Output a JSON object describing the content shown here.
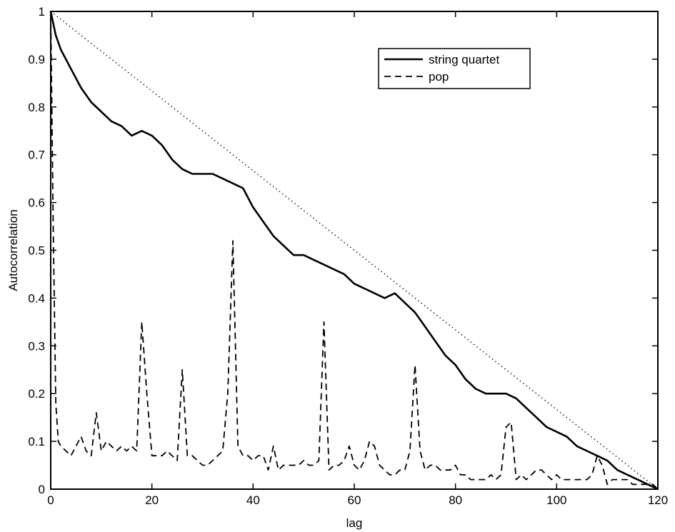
{
  "chart_data": {
    "type": "line",
    "title": "",
    "xlabel": "lag",
    "ylabel": "Autocorrelation",
    "xlim": [
      0,
      120
    ],
    "ylim": [
      0,
      1
    ],
    "xticks": [
      0,
      20,
      40,
      60,
      80,
      100,
      120
    ],
    "yticks": [
      0,
      0.1,
      0.2,
      0.3,
      0.4,
      0.5,
      0.6,
      0.7,
      0.8,
      0.9,
      1
    ],
    "ytick_labels": [
      "0",
      "0.1",
      "0.2",
      "0.3",
      "0.4",
      "0.5",
      "0.6",
      "0.7",
      "0.8",
      "0.9",
      "1"
    ],
    "grid": false,
    "legend_position": "top-right",
    "series": [
      {
        "name": "string quartet",
        "style": "solid",
        "color": "#000000",
        "x": [
          0,
          1,
          2,
          4,
          6,
          8,
          10,
          12,
          14,
          16,
          18,
          20,
          22,
          24,
          26,
          28,
          30,
          32,
          34,
          36,
          38,
          40,
          42,
          44,
          46,
          48,
          50,
          52,
          54,
          56,
          58,
          60,
          62,
          64,
          66,
          68,
          70,
          72,
          74,
          76,
          78,
          80,
          82,
          84,
          86,
          88,
          90,
          92,
          94,
          96,
          98,
          100,
          102,
          104,
          106,
          108,
          110,
          112,
          114,
          116,
          118,
          120
        ],
        "y": [
          1.0,
          0.95,
          0.92,
          0.88,
          0.84,
          0.81,
          0.79,
          0.77,
          0.76,
          0.74,
          0.75,
          0.74,
          0.72,
          0.69,
          0.67,
          0.66,
          0.66,
          0.66,
          0.65,
          0.64,
          0.63,
          0.59,
          0.56,
          0.53,
          0.51,
          0.49,
          0.49,
          0.48,
          0.47,
          0.46,
          0.45,
          0.43,
          0.42,
          0.41,
          0.4,
          0.41,
          0.39,
          0.37,
          0.34,
          0.31,
          0.28,
          0.26,
          0.23,
          0.21,
          0.2,
          0.2,
          0.2,
          0.19,
          0.17,
          0.15,
          0.13,
          0.12,
          0.11,
          0.09,
          0.08,
          0.07,
          0.06,
          0.04,
          0.03,
          0.02,
          0.01,
          0.0
        ]
      },
      {
        "name": "pop",
        "style": "dashed",
        "color": "#000000",
        "x": [
          0,
          0.5,
          1,
          1.5,
          2,
          3,
          4,
          5,
          6,
          7,
          8,
          9,
          10,
          11,
          12,
          13,
          14,
          15,
          16,
          17,
          18,
          19,
          20,
          21,
          22,
          23,
          24,
          25,
          26,
          27,
          28,
          29,
          30,
          31,
          32,
          33,
          34,
          35,
          36,
          37,
          38,
          39,
          40,
          41,
          42,
          43,
          44,
          45,
          46,
          47,
          48,
          49,
          50,
          51,
          52,
          53,
          54,
          55,
          56,
          57,
          58,
          59,
          60,
          61,
          62,
          63,
          64,
          65,
          66,
          67,
          68,
          69,
          70,
          71,
          72,
          73,
          74,
          75,
          76,
          77,
          78,
          79,
          80,
          81,
          82,
          83,
          84,
          85,
          86,
          87,
          88,
          89,
          90,
          91,
          92,
          93,
          94,
          95,
          96,
          97,
          98,
          99,
          100,
          101,
          102,
          103,
          104,
          105,
          106,
          107,
          108,
          109,
          110,
          111,
          112,
          113,
          114,
          115,
          116,
          117,
          118,
          119,
          120
        ],
        "y": [
          1.0,
          0.55,
          0.18,
          0.1,
          0.09,
          0.08,
          0.07,
          0.09,
          0.11,
          0.08,
          0.07,
          0.16,
          0.08,
          0.1,
          0.09,
          0.08,
          0.09,
          0.08,
          0.09,
          0.08,
          0.35,
          0.2,
          0.07,
          0.07,
          0.07,
          0.08,
          0.07,
          0.06,
          0.25,
          0.07,
          0.07,
          0.06,
          0.05,
          0.05,
          0.06,
          0.07,
          0.08,
          0.2,
          0.52,
          0.09,
          0.07,
          0.07,
          0.06,
          0.07,
          0.07,
          0.04,
          0.09,
          0.04,
          0.05,
          0.05,
          0.05,
          0.05,
          0.06,
          0.05,
          0.05,
          0.06,
          0.35,
          0.04,
          0.05,
          0.05,
          0.06,
          0.09,
          0.05,
          0.04,
          0.06,
          0.1,
          0.09,
          0.05,
          0.04,
          0.03,
          0.03,
          0.04,
          0.04,
          0.08,
          0.26,
          0.08,
          0.04,
          0.05,
          0.05,
          0.04,
          0.04,
          0.04,
          0.05,
          0.03,
          0.03,
          0.02,
          0.02,
          0.02,
          0.02,
          0.03,
          0.02,
          0.03,
          0.13,
          0.14,
          0.02,
          0.03,
          0.02,
          0.03,
          0.04,
          0.04,
          0.03,
          0.02,
          0.03,
          0.02,
          0.02,
          0.02,
          0.02,
          0.02,
          0.02,
          0.03,
          0.07,
          0.05,
          0.01,
          0.02,
          0.02,
          0.02,
          0.02,
          0.01,
          0.01,
          0.01,
          0.01,
          0.01,
          0.0
        ]
      },
      {
        "name": "",
        "style": "dotted",
        "color": "#000000",
        "x": [
          0,
          120
        ],
        "y": [
          1.0,
          0.0
        ]
      }
    ]
  }
}
